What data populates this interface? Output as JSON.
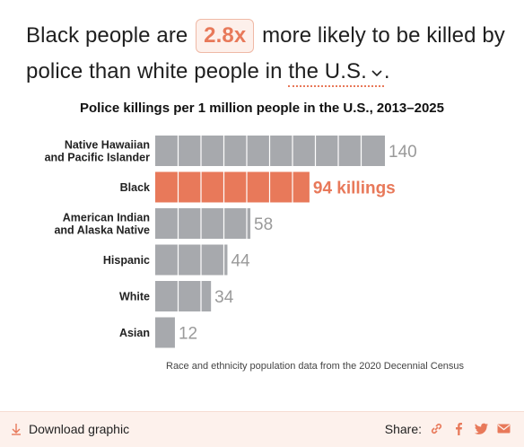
{
  "headline": {
    "part1": "Black people are",
    "ratio": "2.8x",
    "part2": "more likely to be killed by police than white people in",
    "location": "the U.S.",
    "end": "."
  },
  "chart_title": "Police killings per 1 million people in the U.S., 2013–2025",
  "source_note": "Race and ethnicity population data from the 2020 Decennial Census",
  "chart_data": {
    "type": "bar",
    "orientation": "horizontal",
    "title": "Police killings per 1 million people in the U.S., 2013–2025",
    "xlabel": "",
    "ylabel": "",
    "categories": [
      [
        "Native Hawaiian",
        "and Pacific Islander"
      ],
      [
        "Black"
      ],
      [
        "American Indian",
        "and Alaska Native"
      ],
      [
        "Hispanic"
      ],
      [
        "White"
      ],
      [
        "Asian"
      ]
    ],
    "values": [
      140,
      94,
      58,
      44,
      34,
      12
    ],
    "value_labels": [
      "140",
      "94 killings",
      "58",
      "44",
      "34",
      "12"
    ],
    "highlight_index": 1,
    "xlim": [
      0,
      140
    ],
    "grid": false,
    "colors": {
      "default": "#a7a9ad",
      "highlight": "#e8795a",
      "label_default": "#9a9a9a"
    }
  },
  "footer": {
    "download_label": "Download graphic",
    "share_label": "Share:"
  },
  "colors": {
    "accent": "#e8795a",
    "footer_bg": "#fdf1ec"
  }
}
